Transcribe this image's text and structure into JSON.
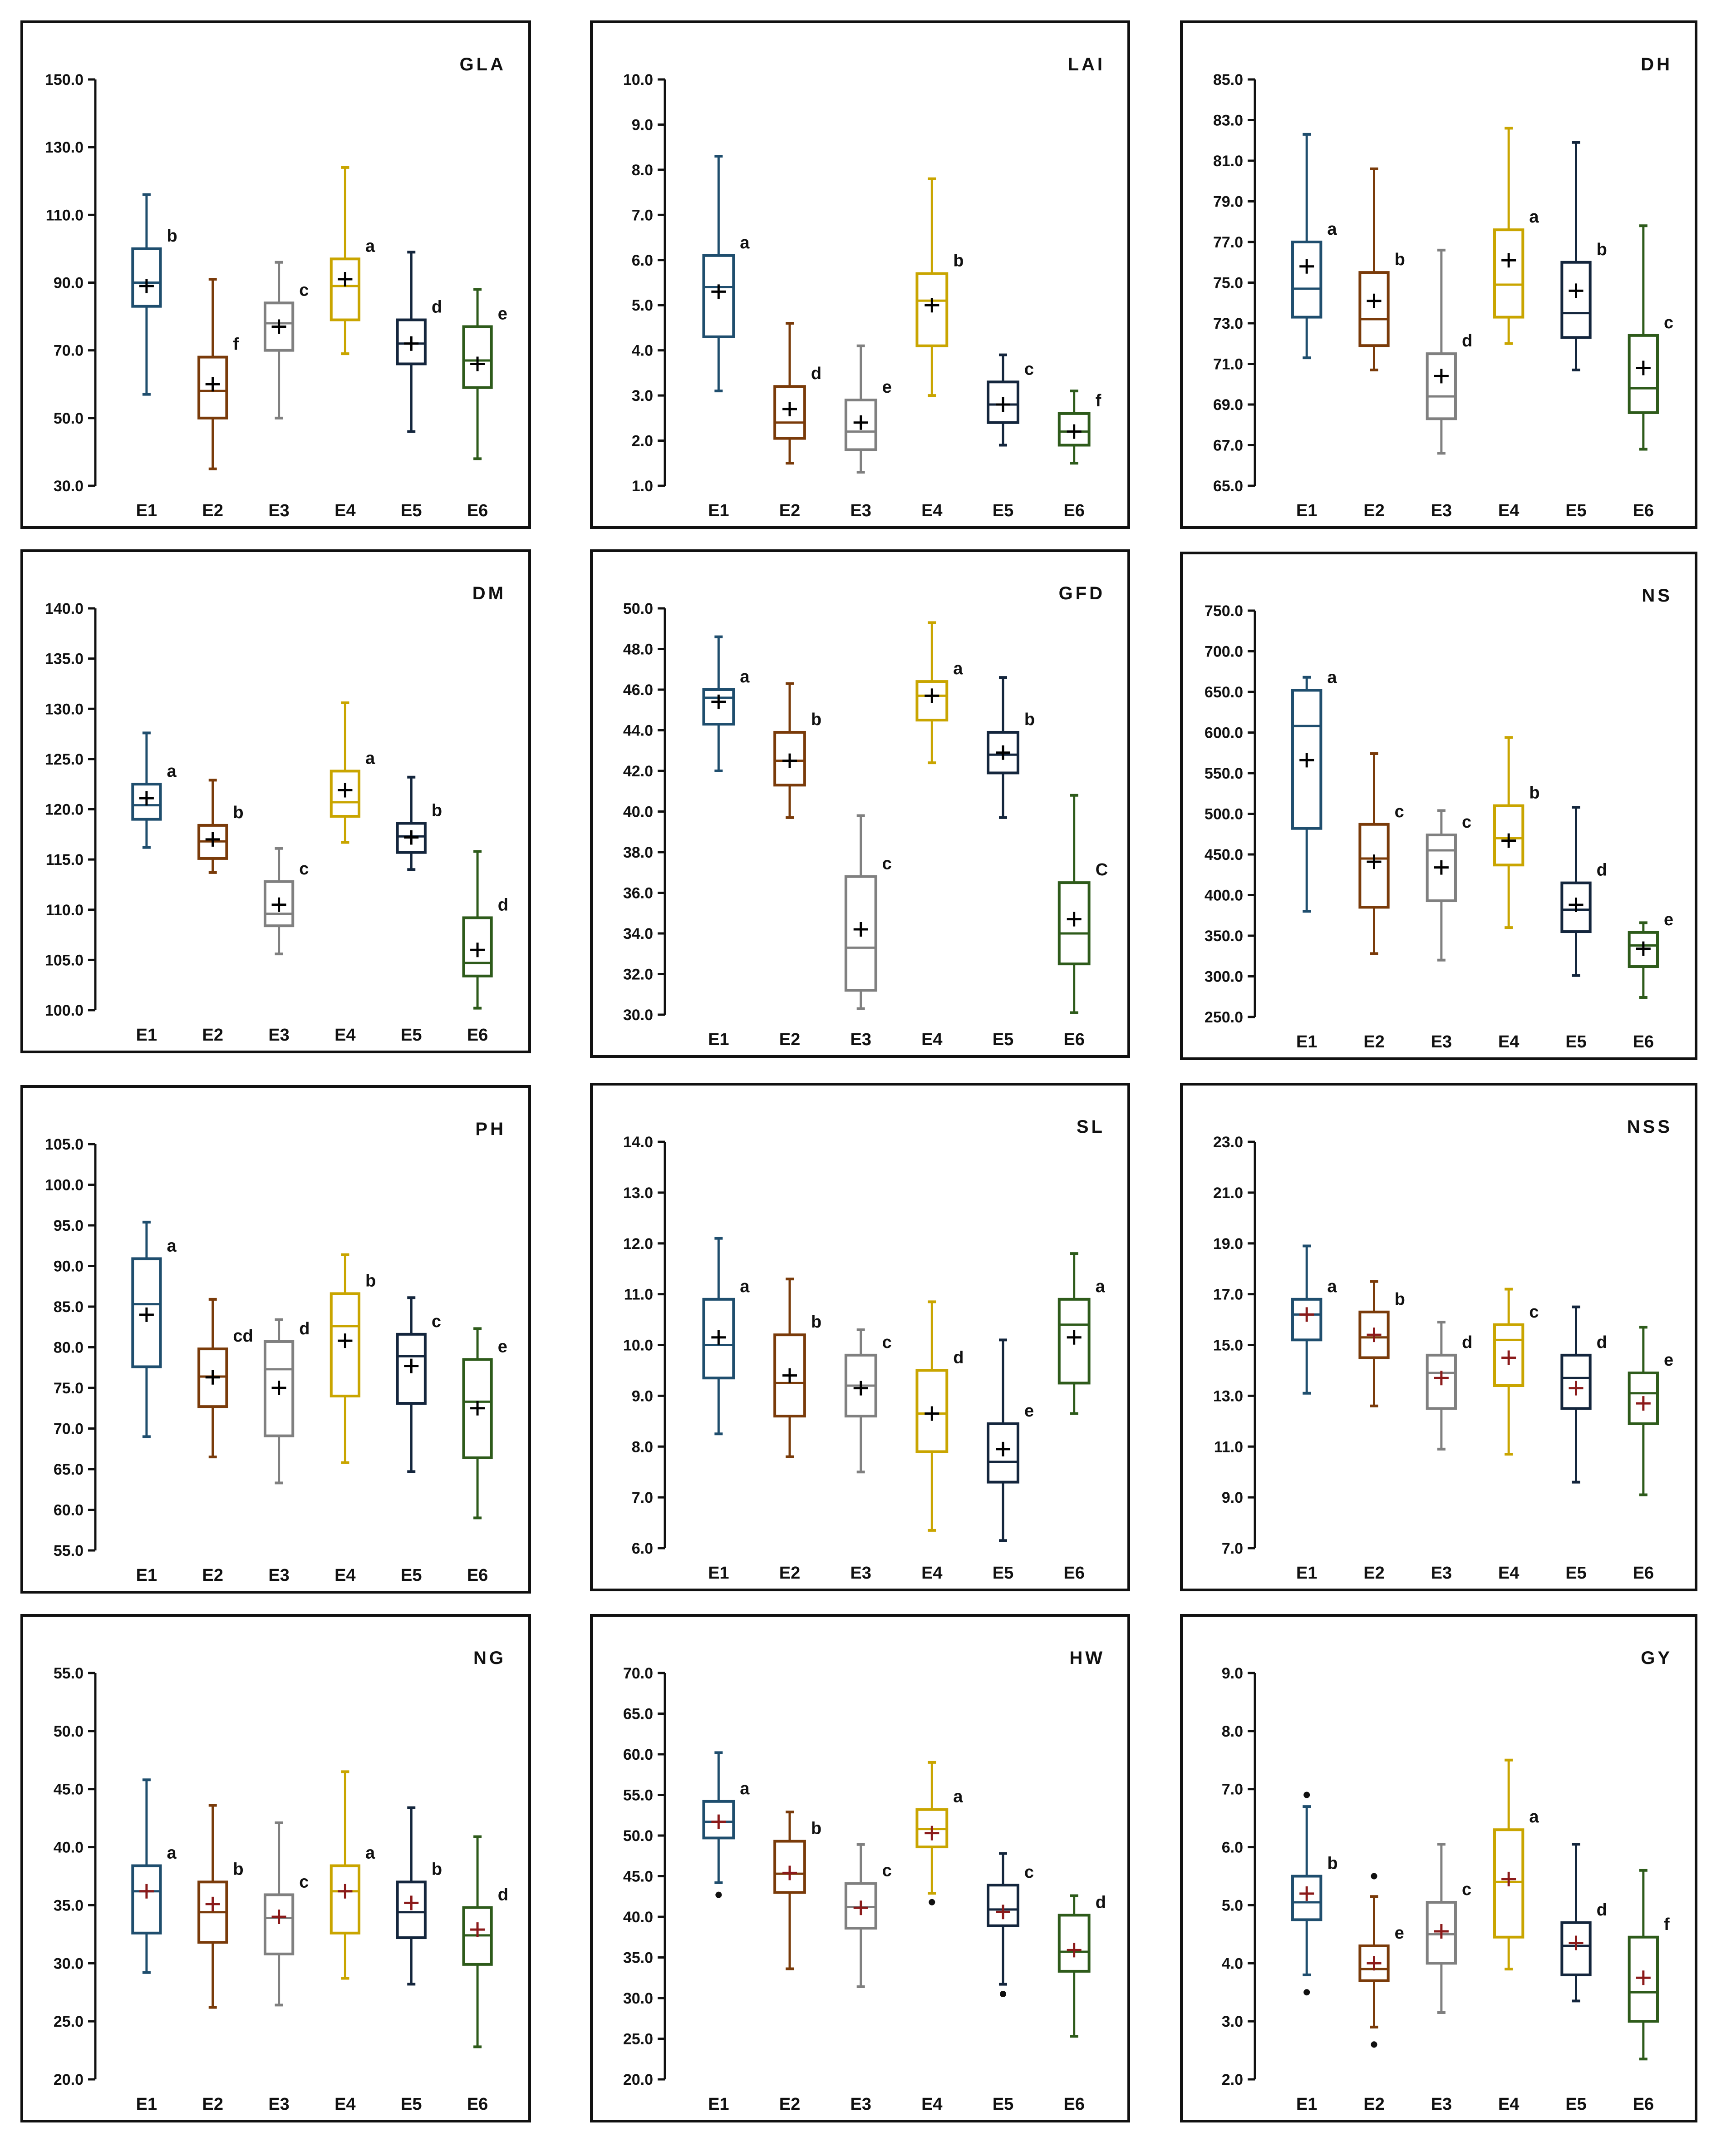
{
  "figure": {
    "environments": [
      "E1",
      "E2",
      "E3",
      "E4",
      "E5",
      "E6"
    ],
    "env_colors": [
      "#1f4e6e",
      "#7a3b0a",
      "#808080",
      "#c9a500",
      "#14263d",
      "#2e5b1b"
    ],
    "mean_color_default": "#000000",
    "mean_color_red": "#8b1a1a"
  },
  "chart_data": [
    {
      "type": "box",
      "title": "GLA",
      "ylim": [
        30,
        150
      ],
      "yticks": [
        30,
        50,
        70,
        90,
        110,
        130,
        150
      ],
      "tick_decimals": 1,
      "mean_color": "default",
      "boxes": [
        {
          "env": "E1",
          "min": 57,
          "q1": 83,
          "median": 90,
          "q3": 100,
          "max": 116,
          "mean": 89,
          "letter": "b"
        },
        {
          "env": "E2",
          "min": 35,
          "q1": 50,
          "median": 58,
          "q3": 68,
          "max": 91,
          "mean": 60,
          "letter": "f"
        },
        {
          "env": "E3",
          "min": 50,
          "q1": 70,
          "median": 78,
          "q3": 84,
          "max": 96,
          "mean": 77,
          "letter": "c"
        },
        {
          "env": "E4",
          "min": 69,
          "q1": 79,
          "median": 89,
          "q3": 97,
          "max": 124,
          "mean": 91,
          "letter": "a"
        },
        {
          "env": "E5",
          "min": 46,
          "q1": 66,
          "median": 72,
          "q3": 79,
          "max": 99,
          "mean": 72,
          "letter": "d"
        },
        {
          "env": "E6",
          "min": 38,
          "q1": 59,
          "median": 67,
          "q3": 77,
          "max": 88,
          "mean": 66,
          "letter": "e"
        }
      ]
    },
    {
      "type": "box",
      "title": "LAI",
      "ylim": [
        1,
        10
      ],
      "yticks": [
        1,
        2,
        3,
        4,
        5,
        6,
        7,
        8,
        9,
        10
      ],
      "tick_decimals": 1,
      "mean_color": "default",
      "boxes": [
        {
          "env": "E1",
          "min": 3.1,
          "q1": 4.3,
          "median": 5.4,
          "q3": 6.1,
          "max": 8.3,
          "mean": 5.3,
          "letter": "a"
        },
        {
          "env": "E2",
          "min": 1.5,
          "q1": 2.05,
          "median": 2.4,
          "q3": 3.2,
          "max": 4.6,
          "mean": 2.7,
          "letter": "d"
        },
        {
          "env": "E3",
          "min": 1.3,
          "q1": 1.8,
          "median": 2.2,
          "q3": 2.9,
          "max": 4.1,
          "mean": 2.4,
          "letter": "e"
        },
        {
          "env": "E4",
          "min": 3.0,
          "q1": 4.1,
          "median": 5.1,
          "q3": 5.7,
          "max": 7.8,
          "mean": 5.0,
          "letter": "b"
        },
        {
          "env": "E5",
          "min": 1.9,
          "q1": 2.4,
          "median": 2.8,
          "q3": 3.3,
          "max": 3.9,
          "mean": 2.8,
          "letter": "c"
        },
        {
          "env": "E6",
          "min": 1.5,
          "q1": 1.9,
          "median": 2.2,
          "q3": 2.6,
          "max": 3.1,
          "mean": 2.2,
          "letter": "f"
        }
      ]
    },
    {
      "type": "box",
      "title": "DH",
      "ylim": [
        65,
        85
      ],
      "yticks": [
        65,
        67,
        69,
        71,
        73,
        75,
        77,
        79,
        81,
        83,
        85
      ],
      "tick_decimals": 1,
      "mean_color": "default",
      "boxes": [
        {
          "env": "E1",
          "min": 71.3,
          "q1": 73.3,
          "median": 74.7,
          "q3": 77.0,
          "max": 82.3,
          "mean": 75.8,
          "letter": "a"
        },
        {
          "env": "E2",
          "min": 70.7,
          "q1": 71.9,
          "median": 73.2,
          "q3": 75.5,
          "max": 80.6,
          "mean": 74.1,
          "letter": "b"
        },
        {
          "env": "E3",
          "min": 66.6,
          "q1": 68.3,
          "median": 69.4,
          "q3": 71.5,
          "max": 76.6,
          "mean": 70.4,
          "letter": "d"
        },
        {
          "env": "E4",
          "min": 72.0,
          "q1": 73.3,
          "median": 74.9,
          "q3": 77.6,
          "max": 82.6,
          "mean": 76.1,
          "letter": "a"
        },
        {
          "env": "E5",
          "min": 70.7,
          "q1": 72.3,
          "median": 73.5,
          "q3": 76.0,
          "max": 81.9,
          "mean": 74.6,
          "letter": "b"
        },
        {
          "env": "E6",
          "min": 66.8,
          "q1": 68.6,
          "median": 69.8,
          "q3": 72.4,
          "max": 77.8,
          "mean": 70.8,
          "letter": "c"
        }
      ]
    },
    {
      "type": "box",
      "title": "DM",
      "ylim": [
        100,
        140
      ],
      "yticks": [
        100,
        105,
        110,
        115,
        120,
        125,
        130,
        135,
        140
      ],
      "tick_decimals": 1,
      "mean_color": "default",
      "boxes": [
        {
          "env": "E1",
          "min": 116.2,
          "q1": 119.0,
          "median": 120.4,
          "q3": 122.5,
          "max": 127.6,
          "mean": 121.1,
          "letter": "a"
        },
        {
          "env": "E2",
          "min": 113.7,
          "q1": 115.1,
          "median": 116.8,
          "q3": 118.4,
          "max": 122.9,
          "mean": 117.0,
          "letter": "b"
        },
        {
          "env": "E3",
          "min": 105.6,
          "q1": 108.4,
          "median": 109.6,
          "q3": 112.8,
          "max": 116.1,
          "mean": 110.5,
          "letter": "c"
        },
        {
          "env": "E4",
          "min": 116.7,
          "q1": 119.3,
          "median": 120.7,
          "q3": 123.8,
          "max": 130.6,
          "mean": 121.9,
          "letter": "a"
        },
        {
          "env": "E5",
          "min": 114.0,
          "q1": 115.7,
          "median": 117.3,
          "q3": 118.6,
          "max": 123.2,
          "mean": 117.2,
          "letter": "b"
        },
        {
          "env": "E6",
          "min": 100.2,
          "q1": 103.4,
          "median": 104.7,
          "q3": 109.2,
          "max": 115.8,
          "mean": 106.0,
          "letter": "d"
        }
      ]
    },
    {
      "type": "box",
      "title": "GFD",
      "ylim": [
        30,
        50
      ],
      "yticks": [
        30,
        32,
        34,
        36,
        38,
        40,
        42,
        44,
        46,
        48,
        50
      ],
      "tick_decimals": 1,
      "mean_color": "default",
      "boxes": [
        {
          "env": "E1",
          "min": 42.0,
          "q1": 44.3,
          "median": 45.6,
          "q3": 46.0,
          "max": 48.6,
          "mean": 45.4,
          "letter": "a"
        },
        {
          "env": "E2",
          "min": 39.7,
          "q1": 41.3,
          "median": 42.5,
          "q3": 43.9,
          "max": 46.3,
          "mean": 42.5,
          "letter": "b"
        },
        {
          "env": "E3",
          "min": 30.3,
          "q1": 31.2,
          "median": 33.3,
          "q3": 36.8,
          "max": 39.8,
          "mean": 34.2,
          "letter": "c"
        },
        {
          "env": "E4",
          "min": 42.4,
          "q1": 44.5,
          "median": 45.7,
          "q3": 46.4,
          "max": 49.3,
          "mean": 45.7,
          "letter": "a"
        },
        {
          "env": "E5",
          "min": 39.7,
          "q1": 41.9,
          "median": 42.8,
          "q3": 43.9,
          "max": 46.6,
          "mean": 42.9,
          "letter": "b"
        },
        {
          "env": "E6",
          "min": 30.1,
          "q1": 32.5,
          "median": 34.0,
          "q3": 36.5,
          "max": 40.8,
          "mean": 34.7,
          "letter": "C"
        }
      ]
    },
    {
      "type": "box",
      "title": "NS",
      "ylim": [
        250,
        750
      ],
      "yticks": [
        250,
        300,
        350,
        400,
        450,
        500,
        550,
        600,
        650,
        700,
        750
      ],
      "tick_decimals": 1,
      "mean_color": "default",
      "boxes": [
        {
          "env": "E1",
          "min": 380,
          "q1": 482,
          "median": 608,
          "q3": 652,
          "max": 668,
          "mean": 566,
          "letter": "a"
        },
        {
          "env": "E2",
          "min": 328,
          "q1": 385,
          "median": 445,
          "q3": 487,
          "max": 574,
          "mean": 441,
          "letter": "c"
        },
        {
          "env": "E3",
          "min": 320,
          "q1": 393,
          "median": 455,
          "q3": 474,
          "max": 504,
          "mean": 434,
          "letter": "c"
        },
        {
          "env": "E4",
          "min": 360,
          "q1": 437,
          "median": 470,
          "q3": 510,
          "max": 594,
          "mean": 467,
          "letter": "b"
        },
        {
          "env": "E5",
          "min": 301,
          "q1": 355,
          "median": 382,
          "q3": 415,
          "max": 508,
          "mean": 388,
          "letter": "d"
        },
        {
          "env": "E6",
          "min": 274,
          "q1": 312,
          "median": 338,
          "q3": 354,
          "max": 366,
          "mean": 334,
          "letter": "e"
        }
      ]
    },
    {
      "type": "box",
      "title": "PH",
      "ylim": [
        55,
        105
      ],
      "yticks": [
        55,
        60,
        65,
        70,
        75,
        80,
        85,
        90,
        95,
        100,
        105
      ],
      "tick_decimals": 1,
      "mean_color": "default",
      "boxes": [
        {
          "env": "E1",
          "min": 69.0,
          "q1": 77.6,
          "median": 85.3,
          "q3": 90.9,
          "max": 95.4,
          "mean": 84.0,
          "letter": "a"
        },
        {
          "env": "E2",
          "min": 66.5,
          "q1": 72.7,
          "median": 76.4,
          "q3": 79.8,
          "max": 85.9,
          "mean": 76.3,
          "letter": "cd"
        },
        {
          "env": "E3",
          "min": 63.3,
          "q1": 69.1,
          "median": 77.3,
          "q3": 80.7,
          "max": 83.4,
          "mean": 75.0,
          "letter": "d"
        },
        {
          "env": "E4",
          "min": 65.8,
          "q1": 74.0,
          "median": 82.6,
          "q3": 86.6,
          "max": 91.4,
          "mean": 80.8,
          "letter": "b"
        },
        {
          "env": "E5",
          "min": 64.7,
          "q1": 73.1,
          "median": 78.9,
          "q3": 81.6,
          "max": 86.1,
          "mean": 77.7,
          "letter": "c"
        },
        {
          "env": "E6",
          "min": 59.0,
          "q1": 66.4,
          "median": 73.3,
          "q3": 78.5,
          "max": 82.3,
          "mean": 72.5,
          "letter": "e"
        }
      ]
    },
    {
      "type": "box",
      "title": "SL",
      "ylim": [
        6,
        14
      ],
      "yticks": [
        6,
        7,
        8,
        9,
        10,
        11,
        12,
        13,
        14
      ],
      "tick_decimals": 1,
      "mean_color": "default",
      "boxes": [
        {
          "env": "E1",
          "min": 8.25,
          "q1": 9.35,
          "median": 10.0,
          "q3": 10.9,
          "max": 12.1,
          "mean": 10.15,
          "letter": "a"
        },
        {
          "env": "E2",
          "min": 7.8,
          "q1": 8.6,
          "median": 9.25,
          "q3": 10.2,
          "max": 11.3,
          "mean": 9.4,
          "letter": "b"
        },
        {
          "env": "E3",
          "min": 7.5,
          "q1": 8.6,
          "median": 9.2,
          "q3": 9.8,
          "max": 10.3,
          "mean": 9.15,
          "letter": "c"
        },
        {
          "env": "E4",
          "min": 6.35,
          "q1": 7.9,
          "median": 8.65,
          "q3": 9.5,
          "max": 10.85,
          "mean": 8.65,
          "letter": "d"
        },
        {
          "env": "E5",
          "min": 6.15,
          "q1": 7.3,
          "median": 7.7,
          "q3": 8.45,
          "max": 10.1,
          "mean": 7.95,
          "letter": "e"
        },
        {
          "env": "E6",
          "min": 8.65,
          "q1": 9.25,
          "median": 10.4,
          "q3": 10.9,
          "max": 11.8,
          "mean": 10.15,
          "letter": "a"
        }
      ]
    },
    {
      "type": "box",
      "title": "NSS",
      "ylim": [
        7,
        23
      ],
      "yticks": [
        7,
        9,
        11,
        13,
        15,
        17,
        19,
        21,
        23
      ],
      "tick_decimals": 1,
      "mean_color": "red",
      "boxes": [
        {
          "env": "E1",
          "min": 13.1,
          "q1": 15.2,
          "median": 16.2,
          "q3": 16.8,
          "max": 18.9,
          "mean": 16.2,
          "letter": "a"
        },
        {
          "env": "E2",
          "min": 12.6,
          "q1": 14.5,
          "median": 15.3,
          "q3": 16.3,
          "max": 17.5,
          "mean": 15.4,
          "letter": "b"
        },
        {
          "env": "E3",
          "min": 10.9,
          "q1": 12.5,
          "median": 13.9,
          "q3": 14.6,
          "max": 15.9,
          "mean": 13.7,
          "letter": "d"
        },
        {
          "env": "E4",
          "min": 10.7,
          "q1": 13.4,
          "median": 15.2,
          "q3": 15.8,
          "max": 17.2,
          "mean": 14.5,
          "letter": "c"
        },
        {
          "env": "E5",
          "min": 9.6,
          "q1": 12.5,
          "median": 13.7,
          "q3": 14.6,
          "max": 16.5,
          "mean": 13.3,
          "letter": "d"
        },
        {
          "env": "E6",
          "min": 9.1,
          "q1": 11.9,
          "median": 13.1,
          "q3": 13.9,
          "max": 15.7,
          "mean": 12.7,
          "letter": "e"
        }
      ]
    },
    {
      "type": "box",
      "title": "NG",
      "ylim": [
        20,
        55
      ],
      "yticks": [
        20,
        25,
        30,
        35,
        40,
        45,
        50,
        55
      ],
      "tick_decimals": 1,
      "mean_color": "red",
      "boxes": [
        {
          "env": "E1",
          "min": 29.2,
          "q1": 32.6,
          "median": 36.2,
          "q3": 38.4,
          "max": 45.8,
          "mean": 36.2,
          "letter": "a"
        },
        {
          "env": "E2",
          "min": 26.2,
          "q1": 31.8,
          "median": 34.4,
          "q3": 37.0,
          "max": 43.6,
          "mean": 35.1,
          "letter": "b"
        },
        {
          "env": "E3",
          "min": 26.4,
          "q1": 30.8,
          "median": 33.9,
          "q3": 35.9,
          "max": 42.1,
          "mean": 34.0,
          "letter": "c"
        },
        {
          "env": "E4",
          "min": 28.7,
          "q1": 32.6,
          "median": 36.2,
          "q3": 38.4,
          "max": 46.5,
          "mean": 36.2,
          "letter": "a"
        },
        {
          "env": "E5",
          "min": 28.2,
          "q1": 32.2,
          "median": 34.4,
          "q3": 37.0,
          "max": 43.4,
          "mean": 35.2,
          "letter": "b"
        },
        {
          "env": "E6",
          "min": 22.8,
          "q1": 29.9,
          "median": 32.4,
          "q3": 34.8,
          "max": 40.9,
          "mean": 32.9,
          "letter": "d"
        }
      ]
    },
    {
      "type": "box",
      "title": "HW",
      "ylim": [
        20,
        70
      ],
      "yticks": [
        20,
        25,
        30,
        35,
        40,
        45,
        50,
        55,
        60,
        65,
        70
      ],
      "tick_decimals": 1,
      "mean_color": "red",
      "boxes": [
        {
          "env": "E1",
          "min": 44.2,
          "q1": 49.7,
          "median": 51.7,
          "q3": 54.2,
          "max": 60.2,
          "mean": 51.7,
          "outliers": [
            42.7
          ],
          "letter": "a"
        },
        {
          "env": "E2",
          "min": 33.6,
          "q1": 43.0,
          "median": 45.3,
          "q3": 49.3,
          "max": 52.9,
          "mean": 45.4,
          "letter": "b"
        },
        {
          "env": "E3",
          "min": 31.4,
          "q1": 38.6,
          "median": 41.2,
          "q3": 44.1,
          "max": 48.9,
          "mean": 41.1,
          "letter": "c"
        },
        {
          "env": "E4",
          "min": 42.9,
          "q1": 48.6,
          "median": 50.8,
          "q3": 53.2,
          "max": 59.0,
          "mean": 50.3,
          "outliers": [
            41.8
          ],
          "letter": "a"
        },
        {
          "env": "E5",
          "min": 31.7,
          "q1": 38.9,
          "median": 40.9,
          "q3": 43.9,
          "max": 47.8,
          "mean": 40.6,
          "outliers": [
            30.5
          ],
          "letter": "c"
        },
        {
          "env": "E6",
          "min": 25.3,
          "q1": 33.3,
          "median": 35.7,
          "q3": 40.2,
          "max": 42.6,
          "mean": 35.9,
          "letter": "d"
        }
      ]
    },
    {
      "type": "box",
      "title": "GY",
      "ylim": [
        2,
        9
      ],
      "yticks": [
        2,
        3,
        4,
        5,
        6,
        7,
        8,
        9
      ],
      "tick_decimals": 1,
      "mean_color": "red",
      "boxes": [
        {
          "env": "E1",
          "min": 3.8,
          "q1": 4.75,
          "median": 5.05,
          "q3": 5.5,
          "max": 6.7,
          "mean": 5.2,
          "outliers": [
            6.9,
            3.5
          ],
          "letter": "b"
        },
        {
          "env": "E2",
          "min": 2.9,
          "q1": 3.7,
          "median": 3.9,
          "q3": 4.3,
          "max": 5.15,
          "mean": 4.0,
          "outliers": [
            5.5,
            2.6
          ],
          "letter": "e"
        },
        {
          "env": "E3",
          "min": 3.15,
          "q1": 4.0,
          "median": 4.5,
          "q3": 5.05,
          "max": 6.05,
          "mean": 4.55,
          "letter": "c"
        },
        {
          "env": "E4",
          "min": 3.9,
          "q1": 4.45,
          "median": 5.4,
          "q3": 6.3,
          "max": 7.5,
          "mean": 5.45,
          "letter": "a"
        },
        {
          "env": "E5",
          "min": 3.35,
          "q1": 3.8,
          "median": 4.3,
          "q3": 4.7,
          "max": 6.05,
          "mean": 4.35,
          "letter": "d"
        },
        {
          "env": "E6",
          "min": 2.35,
          "q1": 3.0,
          "median": 3.5,
          "q3": 4.45,
          "max": 5.6,
          "mean": 3.75,
          "letter": "f"
        }
      ]
    }
  ]
}
